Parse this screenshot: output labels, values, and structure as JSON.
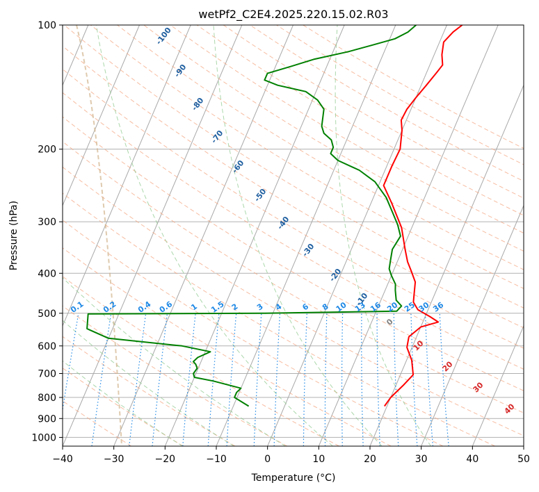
{
  "chart_data": {
    "type": "line",
    "title": "wetPf2_C2E4.2025.220.15.02.R03",
    "xlabel": "Temperature (°C)",
    "ylabel": "Pressure (hPa)",
    "xlim": [
      -40,
      50
    ],
    "ylim": [
      1050,
      100
    ],
    "y_scale": "log",
    "grid": true,
    "x_ticks": [
      -40,
      -30,
      -20,
      -10,
      0,
      10,
      20,
      30,
      40,
      50
    ],
    "x_tick_labels": [
      "−40",
      "−30",
      "−20",
      "−10",
      "0",
      "10",
      "20",
      "30",
      "40",
      "50"
    ],
    "y_ticks": [
      100,
      200,
      300,
      400,
      500,
      600,
      700,
      800,
      900,
      1000
    ],
    "y_tick_labels": [
      "100",
      "200",
      "300",
      "400",
      "500",
      "600",
      "700",
      "800",
      "900",
      "1000"
    ],
    "series": [
      {
        "color": "#ff0000",
        "role": "temperature",
        "points": [
          [
            19.5,
            840
          ],
          [
            20.0,
            800
          ],
          [
            21.5,
            745
          ],
          [
            22.5,
            705
          ],
          [
            21.0,
            650
          ],
          [
            19.0,
            605
          ],
          [
            18.5,
            570
          ],
          [
            20.0,
            540
          ],
          [
            23.0,
            525
          ],
          [
            21.0,
            510
          ],
          [
            18.0,
            490
          ],
          [
            16.5,
            470
          ],
          [
            16.0,
            450
          ],
          [
            15.2,
            420
          ],
          [
            13.5,
            395
          ],
          [
            12.0,
            375
          ],
          [
            10.5,
            350
          ],
          [
            8.0,
            310
          ],
          [
            4.0,
            270
          ],
          [
            1.0,
            245
          ],
          [
            1.0,
            220
          ],
          [
            1.2,
            200
          ],
          [
            0.0,
            180
          ],
          [
            -1.0,
            170
          ],
          [
            -0.8,
            160
          ],
          [
            0.0,
            150
          ],
          [
            1.0,
            140
          ],
          [
            2.0,
            130
          ],
          [
            2.5,
            125
          ],
          [
            1.5,
            118
          ],
          [
            0.8,
            110
          ],
          [
            1.8,
            104
          ],
          [
            3.0,
            100
          ]
        ]
      },
      {
        "color": "#008000",
        "role": "dewpoint",
        "points": [
          [
            -7.0,
            840
          ],
          [
            -10.5,
            800
          ],
          [
            -10.5,
            778
          ],
          [
            -10.0,
            760
          ],
          [
            -16.0,
            730
          ],
          [
            -20.0,
            715
          ],
          [
            -20.5,
            700
          ],
          [
            -20.2,
            680
          ],
          [
            -20.8,
            665
          ],
          [
            -21.5,
            655
          ],
          [
            -21.0,
            640
          ],
          [
            -19.0,
            620
          ],
          [
            -25.0,
            600
          ],
          [
            -40.0,
            575
          ],
          [
            -45.0,
            545
          ],
          [
            -46.0,
            502
          ],
          [
            -12.0,
            500
          ],
          [
            14.0,
            494
          ],
          [
            14.5,
            480
          ],
          [
            13.0,
            465
          ],
          [
            12.0,
            440
          ],
          [
            11.5,
            425
          ],
          [
            10.0,
            405
          ],
          [
            9.0,
            390
          ],
          [
            8.5,
            370
          ],
          [
            8.0,
            350
          ],
          [
            8.5,
            325
          ],
          [
            7.0,
            305
          ],
          [
            5.0,
            285
          ],
          [
            2.5,
            262
          ],
          [
            -1.0,
            240
          ],
          [
            -5.0,
            225
          ],
          [
            -10.0,
            213
          ],
          [
            -12.0,
            205
          ],
          [
            -12.0,
            198
          ],
          [
            -13.0,
            190
          ],
          [
            -15.0,
            183
          ],
          [
            -16.0,
            176
          ],
          [
            -16.5,
            168
          ],
          [
            -17.0,
            160
          ],
          [
            -19.0,
            152
          ],
          [
            -22.0,
            145
          ],
          [
            -28.0,
            140
          ],
          [
            -31.0,
            136
          ],
          [
            -31.0,
            131
          ],
          [
            -27.0,
            126
          ],
          [
            -23.0,
            121
          ],
          [
            -17.0,
            116
          ],
          [
            -13.0,
            112
          ],
          [
            -9.0,
            108
          ],
          [
            -7.0,
            104
          ],
          [
            -6.0,
            100
          ]
        ]
      }
    ],
    "mixing_ratio_labels": [
      "0.1",
      "0.2",
      "0.4",
      "0.6",
      "1",
      "1.5",
      "2",
      "3",
      "4",
      "6",
      "8",
      "10",
      "13",
      "16",
      "20",
      "25",
      "30",
      "36"
    ],
    "mixing_ratio_values": [
      0.1,
      0.2,
      0.4,
      0.6,
      1,
      1.5,
      2,
      3,
      4,
      6,
      8,
      10,
      13,
      16,
      20,
      25,
      30,
      36
    ],
    "moist_adiabat_labels": [
      "-100",
      "-90",
      "-80",
      "-70",
      "-60",
      "-50",
      "-40",
      "-30",
      "-20",
      "-10"
    ],
    "moist_adiabat_values": [
      -100,
      -90,
      -80,
      -70,
      -60,
      -50,
      -40,
      -30,
      -20,
      -10
    ],
    "theta_e_labels": [
      "0",
      "10",
      "20",
      "30",
      "40"
    ],
    "theta_e_values": [
      0,
      10,
      20,
      30,
      40
    ],
    "colors": {
      "temperature": "#ff0000",
      "dewpoint": "#008000",
      "isotherm": "#a8a8a8",
      "grid": "#b0b0b0",
      "dry_adiabat": "#f4a582",
      "moist_adiabat": "#8fc98f",
      "mixing_ratio": "#1e88e5",
      "ref_arc": "#d2b48c",
      "moist_label": "#1f5fa0",
      "theta_e_label": "#d62728",
      "theta_e_zero": "#808080"
    }
  }
}
